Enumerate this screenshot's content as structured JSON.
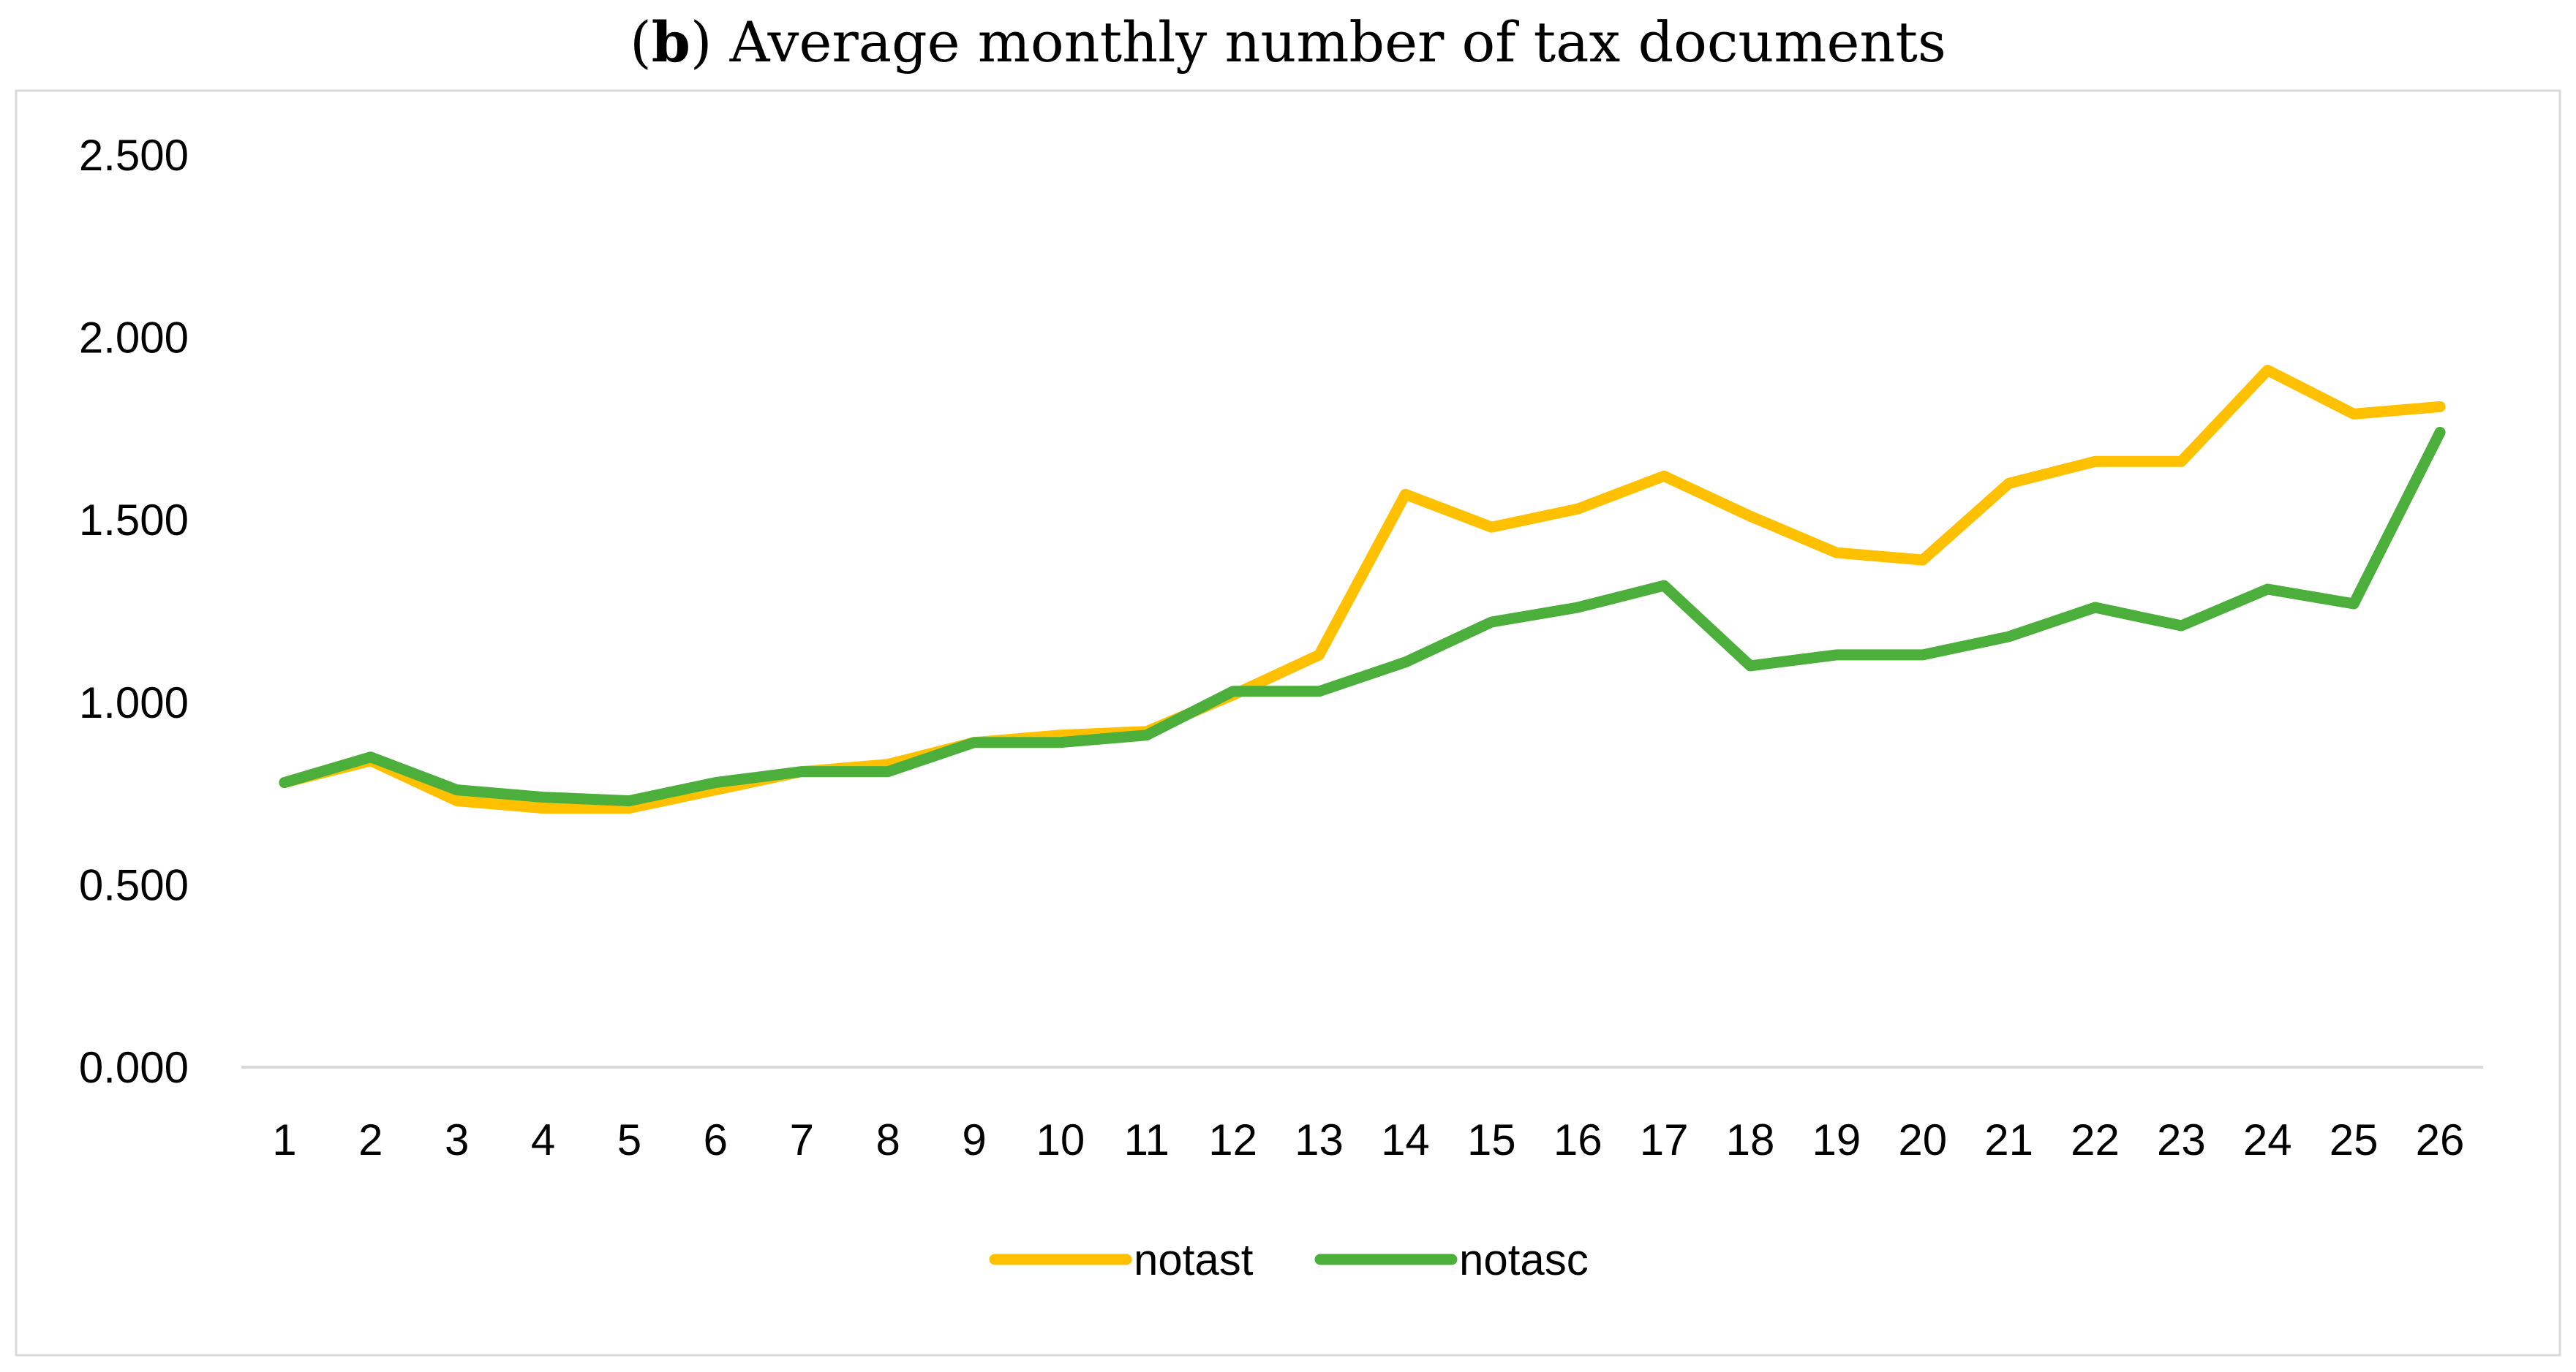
{
  "chart_data": {
    "type": "line",
    "title_prefix": "(",
    "title_bold": "b",
    "title_rest": ") Average monthly number of tax documents",
    "xlabel": "",
    "ylabel": "",
    "ylim": [
      0,
      2.5
    ],
    "ytick_values": [
      0,
      0.5,
      1.0,
      1.5,
      2.0,
      2.5
    ],
    "ytick_labels": [
      "0.000",
      "0.500",
      "1.000",
      "1.500",
      "2.000",
      "2.500"
    ],
    "categories": [
      "1",
      "2",
      "3",
      "4",
      "5",
      "6",
      "7",
      "8",
      "9",
      "10",
      "11",
      "12",
      "13",
      "14",
      "15",
      "16",
      "17",
      "18",
      "19",
      "20",
      "21",
      "22",
      "23",
      "24",
      "25",
      "26"
    ],
    "grid": false,
    "legend_position": "bottom",
    "series": [
      {
        "name": "notast",
        "color": "#FFC000",
        "values": [
          0.78,
          0.84,
          0.73,
          0.71,
          0.71,
          0.76,
          0.81,
          0.83,
          0.89,
          0.91,
          0.92,
          1.02,
          1.13,
          1.57,
          1.48,
          1.53,
          1.62,
          1.51,
          1.41,
          1.39,
          1.6,
          1.66,
          1.66,
          1.91,
          1.79,
          1.81
        ]
      },
      {
        "name": "notasc",
        "color": "#4CAF3C",
        "values": [
          0.78,
          0.85,
          0.76,
          0.74,
          0.73,
          0.78,
          0.81,
          0.81,
          0.89,
          0.89,
          0.91,
          1.03,
          1.03,
          1.11,
          1.22,
          1.26,
          1.32,
          1.1,
          1.13,
          1.13,
          1.18,
          1.26,
          1.21,
          1.31,
          1.27,
          1.74
        ]
      }
    ]
  }
}
